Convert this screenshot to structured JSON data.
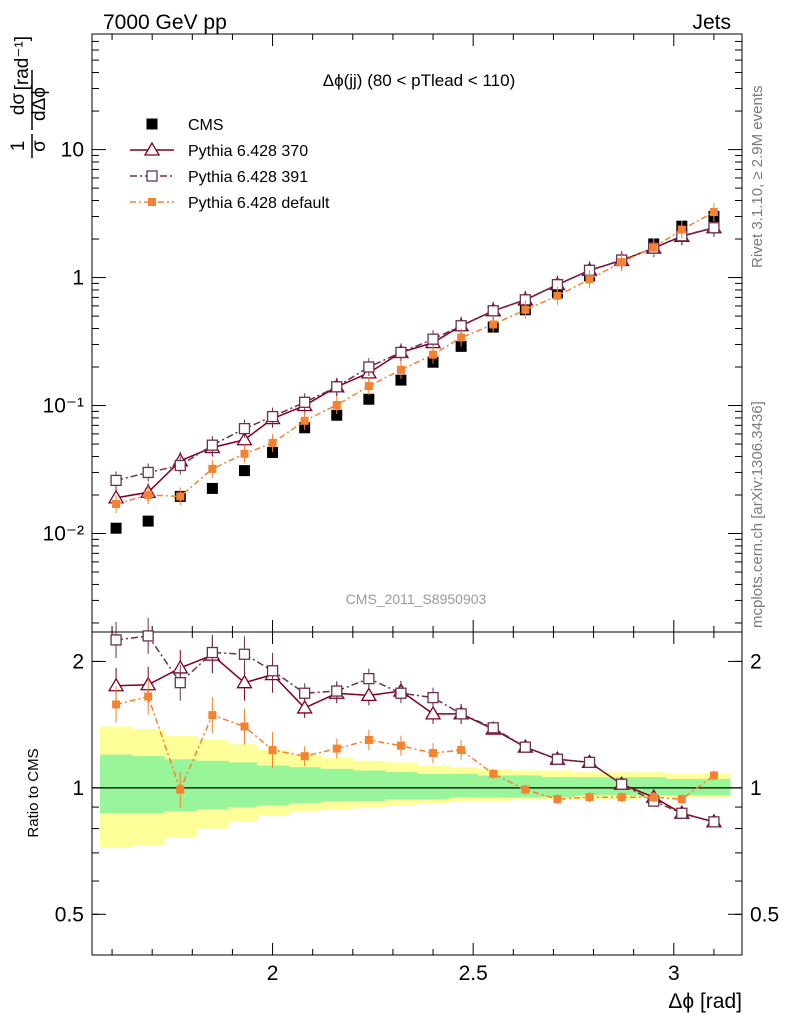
{
  "header": {
    "left": "7000 GeV pp",
    "right": "Jets"
  },
  "side_labels": {
    "rivet": "Rivet 3.1.10, ≥ 2.9M events",
    "mcplots": "mcplots.cern.ch [arXiv:1306.3436]"
  },
  "chart_data": [
    {
      "type": "scatter",
      "panel": "main",
      "title": "Δϕ(jj) (80 < pTlead <  110)",
      "ylabel": "1/σ dσ/dΔϕ [rad⁻¹]",
      "xlabel": "Δϕ [rad]",
      "yscale": "log",
      "xlim": [
        1.55,
        3.17
      ],
      "ylim": [
        0.0017,
        80
      ],
      "y_ticks": [
        {
          "value": 0.01,
          "label": "10⁻²"
        },
        {
          "value": 0.1,
          "label": "10⁻¹"
        },
        {
          "value": 1,
          "label": "1"
        },
        {
          "value": 10,
          "label": "10"
        }
      ],
      "watermark": "CMS_2011_S8950903",
      "legend_position": "top-left",
      "x": [
        1.61,
        1.69,
        1.77,
        1.85,
        1.93,
        2.0,
        2.08,
        2.16,
        2.24,
        2.32,
        2.4,
        2.47,
        2.55,
        2.63,
        2.71,
        2.79,
        2.87,
        2.95,
        3.02,
        3.1
      ],
      "series": [
        {
          "name": "CMS",
          "color": "#000000",
          "marker": "filled-square",
          "values": [
            0.011,
            0.0125,
            0.0195,
            0.0225,
            0.031,
            0.043,
            0.067,
            0.084,
            0.112,
            0.158,
            0.218,
            0.29,
            0.41,
            0.56,
            0.76,
            1.03,
            1.36,
            1.83,
            2.52,
            3.0
          ]
        },
        {
          "name": "Pythia 6.428 370",
          "color": "#800020",
          "marker": "open-triangle",
          "values": [
            0.019,
            0.021,
            0.037,
            0.047,
            0.054,
            0.079,
            0.1,
            0.14,
            0.18,
            0.26,
            0.31,
            0.42,
            0.55,
            0.67,
            0.88,
            1.14,
            1.36,
            1.7,
            2.1,
            2.45
          ]
        },
        {
          "name": "Pythia 6.428 391",
          "color": "#6b3050",
          "marker": "open-square",
          "values": [
            0.026,
            0.03,
            0.034,
            0.049,
            0.066,
            0.082,
            0.106,
            0.14,
            0.2,
            0.26,
            0.33,
            0.42,
            0.55,
            0.67,
            0.88,
            1.14,
            1.37,
            1.7,
            2.12,
            2.45
          ]
        },
        {
          "name": "Pythia 6.428 default",
          "color": "#f58231",
          "marker": "filled-small-square",
          "values": [
            0.017,
            0.02,
            0.0195,
            0.032,
            0.042,
            0.051,
            0.076,
            0.101,
            0.142,
            0.19,
            0.25,
            0.34,
            0.43,
            0.56,
            0.72,
            0.97,
            1.32,
            1.72,
            2.37,
            3.25
          ]
        }
      ]
    },
    {
      "type": "line",
      "panel": "ratio",
      "ylabel": "Ratio to CMS",
      "yscale": "log",
      "ylim": [
        0.4,
        2.35
      ],
      "y_ticks": [
        {
          "value": 0.5,
          "label": "0.5"
        },
        {
          "value": 1,
          "label": "1"
        },
        {
          "value": 2,
          "label": "2"
        }
      ],
      "x_ticks": [
        {
          "value": 2.0,
          "label": "2"
        },
        {
          "value": 2.5,
          "label": "2.5"
        },
        {
          "value": 3.0,
          "label": "3"
        }
      ],
      "x": [
        1.61,
        1.69,
        1.77,
        1.85,
        1.93,
        2.0,
        2.08,
        2.16,
        2.24,
        2.32,
        2.4,
        2.47,
        2.55,
        2.63,
        2.71,
        2.79,
        2.87,
        2.95,
        3.02,
        3.1
      ],
      "bin_edges": [
        1.57,
        1.65,
        1.73,
        1.81,
        1.89,
        1.96,
        2.04,
        2.12,
        2.2,
        2.28,
        2.36,
        2.44,
        2.51,
        2.59,
        2.67,
        2.75,
        2.83,
        2.91,
        2.98,
        3.06,
        3.14
      ],
      "band_yellow": [
        [
          0.72,
          1.4
        ],
        [
          0.73,
          1.38
        ],
        [
          0.76,
          1.33
        ],
        [
          0.8,
          1.3
        ],
        [
          0.83,
          1.27
        ],
        [
          0.86,
          1.23
        ],
        [
          0.88,
          1.2
        ],
        [
          0.89,
          1.18
        ],
        [
          0.9,
          1.16
        ],
        [
          0.91,
          1.15
        ],
        [
          0.92,
          1.13
        ],
        [
          0.93,
          1.12
        ],
        [
          0.93,
          1.11
        ],
        [
          0.94,
          1.1
        ],
        [
          0.94,
          1.1
        ],
        [
          0.94,
          1.09
        ],
        [
          0.94,
          1.09
        ],
        [
          0.95,
          1.09
        ],
        [
          0.95,
          1.08
        ],
        [
          0.95,
          1.08
        ]
      ],
      "band_green": [
        [
          0.87,
          1.2
        ],
        [
          0.87,
          1.19
        ],
        [
          0.88,
          1.17
        ],
        [
          0.89,
          1.16
        ],
        [
          0.9,
          1.15
        ],
        [
          0.91,
          1.13
        ],
        [
          0.92,
          1.12
        ],
        [
          0.93,
          1.11
        ],
        [
          0.93,
          1.1
        ],
        [
          0.94,
          1.09
        ],
        [
          0.94,
          1.08
        ],
        [
          0.95,
          1.08
        ],
        [
          0.95,
          1.07
        ],
        [
          0.95,
          1.07
        ],
        [
          0.95,
          1.06
        ],
        [
          0.96,
          1.06
        ],
        [
          0.96,
          1.06
        ],
        [
          0.96,
          1.06
        ],
        [
          0.96,
          1.05
        ],
        [
          0.96,
          1.05
        ]
      ],
      "series": [
        {
          "name": "Pythia 6.428 370",
          "color": "#800020",
          "values": [
            1.75,
            1.76,
            1.93,
            2.07,
            1.78,
            1.86,
            1.55,
            1.68,
            1.66,
            1.7,
            1.5,
            1.5,
            1.38,
            1.25,
            1.17,
            1.15,
            1.02,
            0.95,
            0.87,
            0.83
          ]
        },
        {
          "name": "Pythia 6.428 391",
          "color": "#6b3050",
          "values": [
            2.25,
            2.3,
            1.78,
            2.1,
            2.08,
            1.9,
            1.68,
            1.7,
            1.82,
            1.68,
            1.64,
            1.5,
            1.39,
            1.25,
            1.17,
            1.15,
            1.02,
            0.93,
            0.87,
            0.83
          ]
        },
        {
          "name": "Pythia 6.428 default",
          "color": "#f58231",
          "values": [
            1.58,
            1.65,
            0.99,
            1.49,
            1.4,
            1.23,
            1.19,
            1.24,
            1.3,
            1.26,
            1.21,
            1.23,
            1.08,
            0.99,
            0.94,
            0.95,
            0.95,
            0.95,
            0.94,
            1.07
          ]
        }
      ]
    }
  ]
}
